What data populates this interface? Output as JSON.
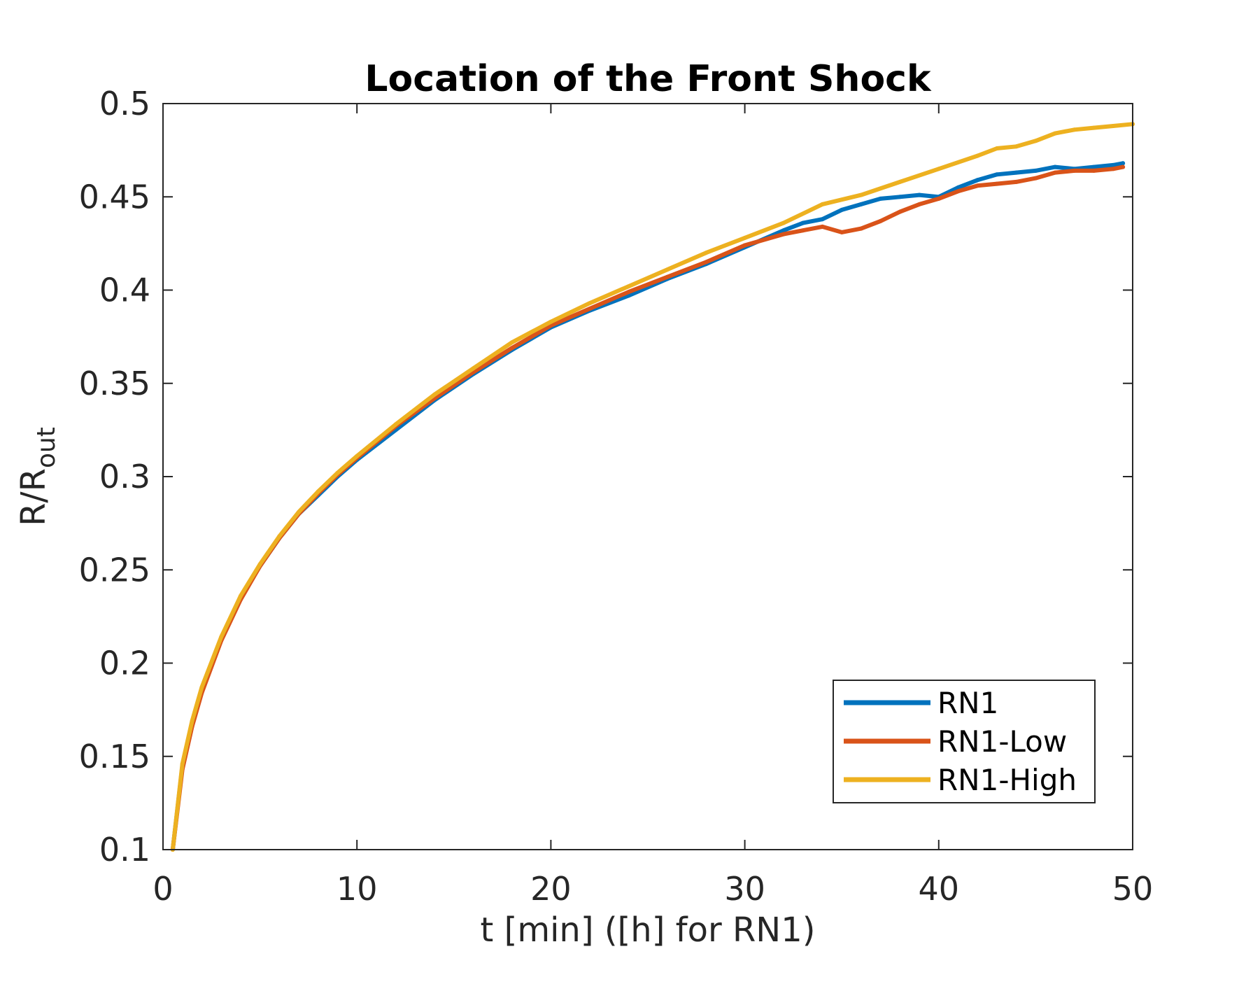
{
  "chart_data": {
    "type": "line",
    "title": "Location of the Front Shock",
    "xlabel": "t [min] ([h] for RN1)",
    "ylabel": {
      "base": "R/R",
      "subscript": "out"
    },
    "xlim": [
      0,
      50
    ],
    "ylim": [
      0.1,
      0.5
    ],
    "xticks": [
      0,
      10,
      20,
      30,
      40,
      50
    ],
    "xtick_labels": [
      "0",
      "10",
      "20",
      "30",
      "40",
      "50"
    ],
    "yticks": [
      0.1,
      0.15,
      0.2,
      0.25,
      0.3,
      0.35,
      0.4,
      0.45,
      0.5
    ],
    "ytick_labels": [
      "0.1",
      "0.15",
      "0.2",
      "0.25",
      "0.3",
      "0.35",
      "0.4",
      "0.45",
      "0.5"
    ],
    "grid": false,
    "legend_position": "bottom-right",
    "series": [
      {
        "name": "RN1",
        "color": "#0072bd",
        "x": [
          0.5,
          1,
          1.5,
          2,
          3,
          4,
          5,
          6,
          7,
          8,
          9,
          10,
          12,
          14,
          16,
          18,
          20,
          22,
          24,
          26,
          28,
          30,
          32,
          33,
          34,
          35,
          36,
          37,
          38,
          39,
          40,
          41,
          42,
          43,
          44,
          45,
          46,
          47,
          48,
          49,
          49.5
        ],
        "y": [
          0.1,
          0.145,
          0.168,
          0.186,
          0.213,
          0.235,
          0.252,
          0.267,
          0.28,
          0.29,
          0.3,
          0.309,
          0.325,
          0.341,
          0.355,
          0.368,
          0.38,
          0.389,
          0.397,
          0.406,
          0.414,
          0.423,
          0.432,
          0.436,
          0.438,
          0.443,
          0.446,
          0.449,
          0.45,
          0.451,
          0.45,
          0.455,
          0.459,
          0.462,
          0.463,
          0.464,
          0.466,
          0.465,
          0.466,
          0.467,
          0.468
        ]
      },
      {
        "name": "RN1-Low",
        "color": "#d95319",
        "x": [
          0.5,
          1,
          1.5,
          2,
          3,
          4,
          5,
          6,
          7,
          8,
          9,
          10,
          12,
          14,
          16,
          18,
          20,
          22,
          24,
          26,
          28,
          30,
          32,
          33,
          34,
          35,
          36,
          37,
          38,
          39,
          40,
          41,
          42,
          43,
          44,
          45,
          46,
          47,
          48,
          49,
          49.5
        ],
        "y": [
          0.1,
          0.143,
          0.166,
          0.184,
          0.212,
          0.234,
          0.252,
          0.267,
          0.28,
          0.291,
          0.301,
          0.31,
          0.327,
          0.342,
          0.356,
          0.369,
          0.381,
          0.39,
          0.399,
          0.407,
          0.415,
          0.424,
          0.43,
          0.432,
          0.434,
          0.431,
          0.433,
          0.437,
          0.442,
          0.446,
          0.449,
          0.453,
          0.456,
          0.457,
          0.458,
          0.46,
          0.463,
          0.464,
          0.464,
          0.465,
          0.466
        ]
      },
      {
        "name": "RN1-High",
        "color": "#edb120",
        "x": [
          0.5,
          1,
          1.5,
          2,
          3,
          4,
          5,
          6,
          7,
          8,
          9,
          10,
          12,
          14,
          16,
          18,
          20,
          22,
          24,
          26,
          28,
          30,
          32,
          34,
          36,
          38,
          40,
          42,
          43,
          44,
          45,
          46,
          47,
          48,
          49,
          50
        ],
        "y": [
          0.1,
          0.146,
          0.169,
          0.187,
          0.214,
          0.236,
          0.253,
          0.268,
          0.281,
          0.292,
          0.302,
          0.311,
          0.328,
          0.344,
          0.358,
          0.372,
          0.383,
          0.393,
          0.402,
          0.411,
          0.42,
          0.428,
          0.436,
          0.446,
          0.451,
          0.458,
          0.465,
          0.472,
          0.476,
          0.477,
          0.48,
          0.484,
          0.486,
          0.487,
          0.488,
          0.489
        ]
      }
    ]
  }
}
